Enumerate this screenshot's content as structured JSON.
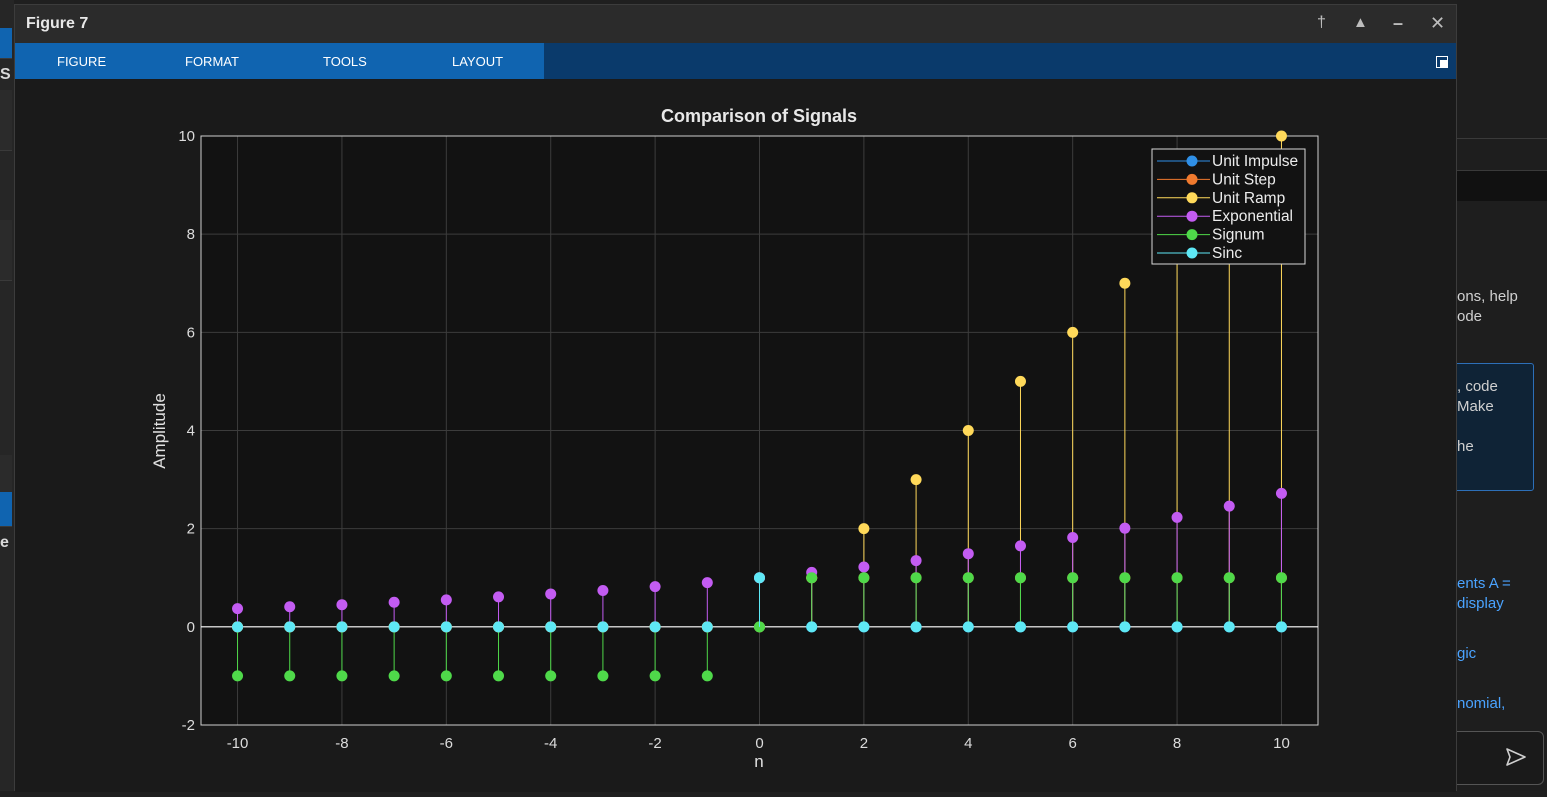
{
  "window": {
    "title": "Figure 7",
    "controls": {
      "pin": "†",
      "undock": "▲",
      "minimize": "–",
      "close": "✕"
    }
  },
  "ribbon": {
    "tabs": [
      "FIGURE",
      "FORMAT",
      "TOOLS",
      "LAYOUT"
    ]
  },
  "background": {
    "left_letters": [
      "S",
      "e"
    ],
    "right_panel_lines": [
      "ons, help",
      "ode",
      ", code",
      "Make",
      "he"
    ],
    "right_panel_links": [
      "ents A =",
      " display",
      "gic",
      "nomial,"
    ]
  },
  "colors": {
    "Unit Impulse": "#2f8fe6",
    "Unit Step": "#f07a2e",
    "Unit Ramp": "#ffd95a",
    "Exponential": "#c35cf2",
    "Signum": "#4fd94a",
    "Sinc": "#5ee8f5"
  },
  "chart_data": {
    "type": "stem",
    "title": "Comparison of Signals",
    "xlabel": "n",
    "ylabel": "Amplitude",
    "xlim": [
      -10.7,
      10.7
    ],
    "ylim": [
      -2,
      10
    ],
    "xticks": [
      -10,
      -8,
      -6,
      -4,
      -2,
      0,
      2,
      4,
      6,
      8,
      10
    ],
    "yticks": [
      -2,
      0,
      2,
      4,
      6,
      8,
      10
    ],
    "grid": true,
    "legend_position": "top-right",
    "x": [
      -10,
      -9,
      -8,
      -7,
      -6,
      -5,
      -4,
      -3,
      -2,
      -1,
      0,
      1,
      2,
      3,
      4,
      5,
      6,
      7,
      8,
      9,
      10
    ],
    "series": [
      {
        "name": "Unit Impulse",
        "values": [
          0,
          0,
          0,
          0,
          0,
          0,
          0,
          0,
          0,
          0,
          1,
          0,
          0,
          0,
          0,
          0,
          0,
          0,
          0,
          0,
          0
        ]
      },
      {
        "name": "Unit Step",
        "values": [
          0,
          0,
          0,
          0,
          0,
          0,
          0,
          0,
          0,
          0,
          1,
          1,
          1,
          1,
          1,
          1,
          1,
          1,
          1,
          1,
          1
        ]
      },
      {
        "name": "Unit Ramp",
        "values": [
          0,
          0,
          0,
          0,
          0,
          0,
          0,
          0,
          0,
          0,
          0,
          1,
          2,
          3,
          4,
          5,
          6,
          7,
          8,
          9,
          10
        ]
      },
      {
        "name": "Exponential",
        "values": [
          0.37,
          0.41,
          0.45,
          0.5,
          0.55,
          0.61,
          0.67,
          0.74,
          0.82,
          0.9,
          1.0,
          1.11,
          1.22,
          1.35,
          1.49,
          1.65,
          1.82,
          2.01,
          2.23,
          2.46,
          2.72
        ]
      },
      {
        "name": "Signum",
        "values": [
          -1,
          -1,
          -1,
          -1,
          -1,
          -1,
          -1,
          -1,
          -1,
          -1,
          0,
          1,
          1,
          1,
          1,
          1,
          1,
          1,
          1,
          1,
          1
        ]
      },
      {
        "name": "Sinc",
        "values": [
          0,
          0,
          0,
          0,
          0,
          0,
          0,
          0,
          0,
          0,
          1,
          0,
          0,
          0,
          0,
          0,
          0,
          0,
          0,
          0,
          0
        ]
      }
    ]
  }
}
